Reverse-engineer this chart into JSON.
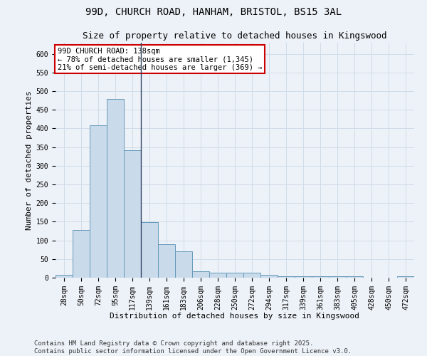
{
  "title_line1": "99D, CHURCH ROAD, HANHAM, BRISTOL, BS15 3AL",
  "title_line2": "Size of property relative to detached houses in Kingswood",
  "xlabel": "Distribution of detached houses by size in Kingswood",
  "ylabel": "Number of detached properties",
  "categories": [
    "28sqm",
    "50sqm",
    "72sqm",
    "95sqm",
    "117sqm",
    "139sqm",
    "161sqm",
    "183sqm",
    "206sqm",
    "228sqm",
    "250sqm",
    "272sqm",
    "294sqm",
    "317sqm",
    "339sqm",
    "361sqm",
    "383sqm",
    "405sqm",
    "428sqm",
    "450sqm",
    "472sqm"
  ],
  "values": [
    8,
    128,
    408,
    480,
    342,
    148,
    90,
    70,
    18,
    13,
    13,
    13,
    7,
    3,
    3,
    3,
    3,
    3,
    0,
    0,
    4
  ],
  "bar_color": "#c9daea",
  "bar_edge_color": "#6699bb",
  "grid_color": "#d0dce8",
  "background_color": "#edf2f8",
  "annotation_box_color": "#ffffff",
  "annotation_border_color": "#cc0000",
  "annotation_text_line1": "99D CHURCH ROAD: 138sqm",
  "annotation_text_line2": "← 78% of detached houses are smaller (1,345)",
  "annotation_text_line3": "21% of semi-detached houses are larger (369) →",
  "vertical_line_x": 4.5,
  "ylim": [
    0,
    630
  ],
  "yticks": [
    0,
    50,
    100,
    150,
    200,
    250,
    300,
    350,
    400,
    450,
    500,
    550,
    600
  ],
  "footer_line1": "Contains HM Land Registry data © Crown copyright and database right 2025.",
  "footer_line2": "Contains public sector information licensed under the Open Government Licence v3.0.",
  "title_fontsize": 10,
  "subtitle_fontsize": 9,
  "axis_label_fontsize": 8,
  "tick_fontsize": 7,
  "annotation_fontsize": 7.5,
  "footer_fontsize": 6.5
}
